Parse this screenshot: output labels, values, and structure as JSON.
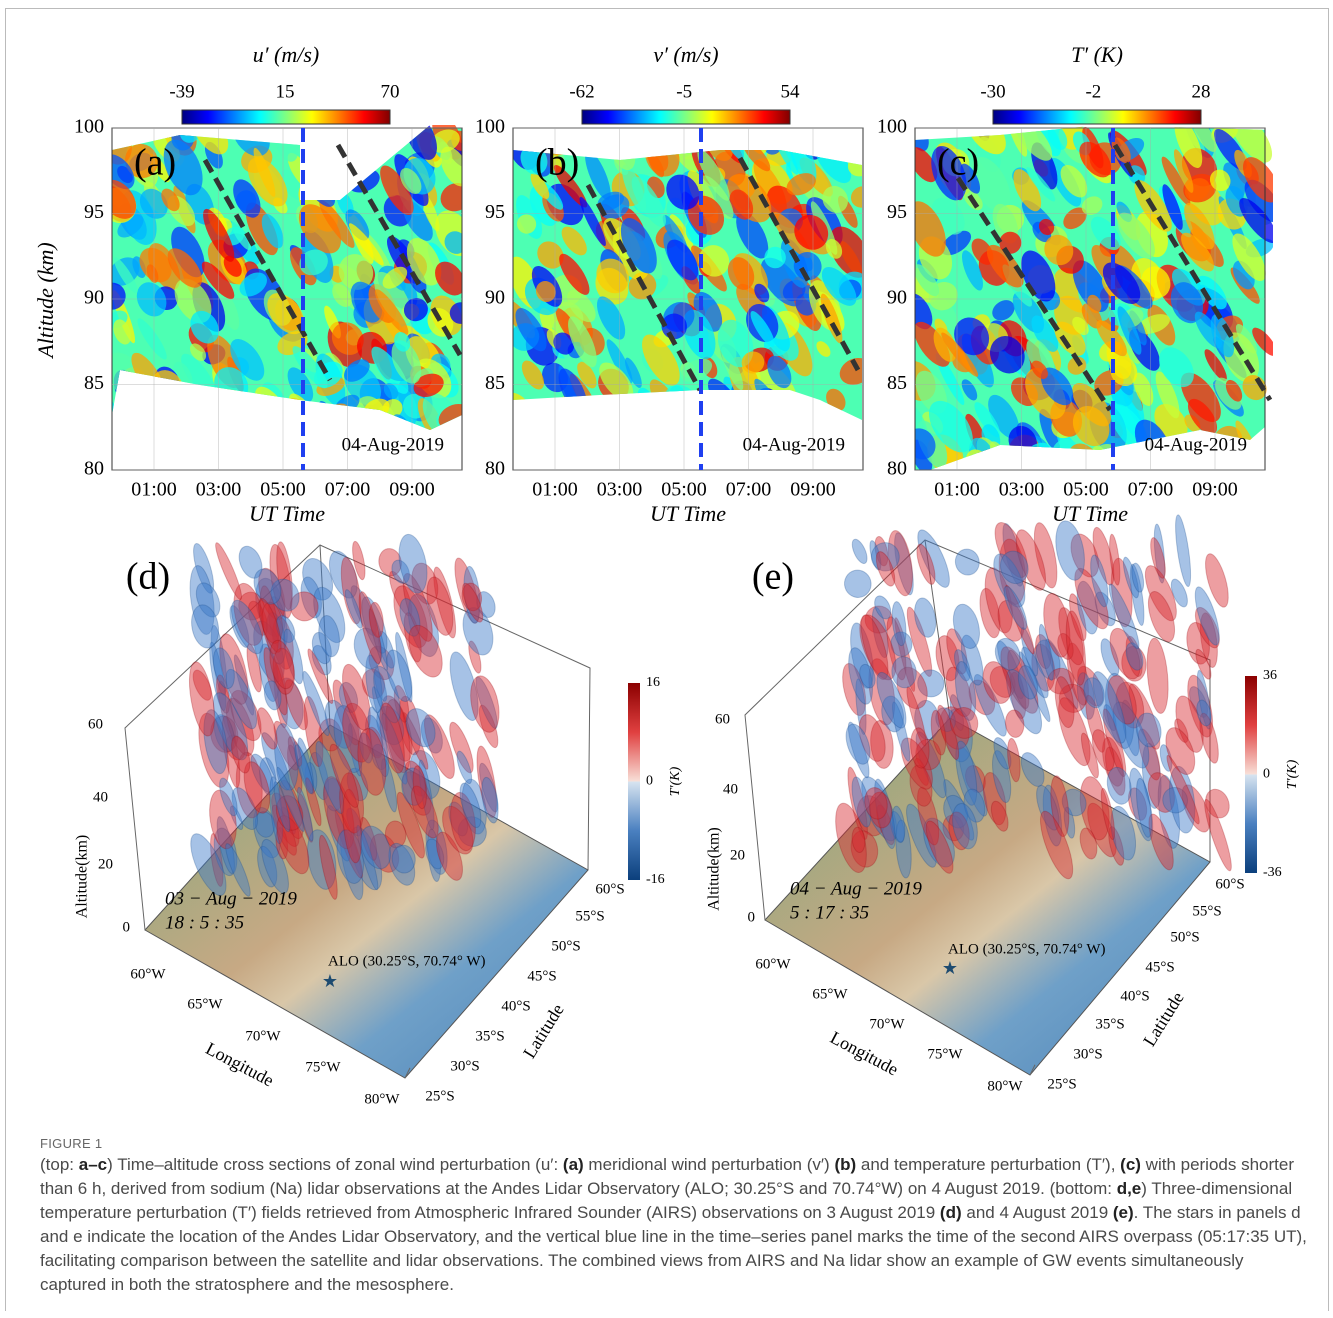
{
  "figure": {
    "top_panels": [
      {
        "letter": "(a)",
        "colorbar_label": "u′ (m/s)",
        "colorbar_ticks": [
          -39,
          15,
          70
        ],
        "date": "04-Aug-2019"
      },
      {
        "letter": "(b)",
        "colorbar_label": "v′ (m/s)",
        "colorbar_ticks": [
          -62,
          -5,
          54
        ],
        "date": "04-Aug-2019"
      },
      {
        "letter": "(c)",
        "colorbar_label": "T′ (K)",
        "colorbar_ticks": [
          -30,
          -2,
          28
        ],
        "date": "04-Aug-2019"
      }
    ],
    "top_axes": {
      "y_label": "Altitude (km)",
      "x_label": "UT Time",
      "yticks": [
        80,
        85,
        90,
        95,
        100
      ],
      "xticks": [
        "01:00",
        "03:00",
        "05:00",
        "07:00",
        "09:00"
      ]
    },
    "bottom_panels": [
      {
        "letter": "(d)",
        "date": "03 − Aug − 2019",
        "time": "18 : 5 : 35",
        "colorbar_ticks": [
          16,
          0,
          -16
        ]
      },
      {
        "letter": "(e)",
        "date": "04 − Aug − 2019",
        "time": "5 : 17 : 35",
        "colorbar_ticks": [
          36,
          0,
          -36
        ]
      }
    ],
    "bottom_axes": {
      "altitude_label": "Altitude(km)",
      "altitude_ticks": [
        0,
        20,
        40,
        60
      ],
      "longitude_label": "Longitude",
      "latitude_label": "Latitude",
      "longitude_ticks": [
        "60°W",
        "65°W",
        "70°W",
        "75°W",
        "80°W"
      ],
      "latitude_ticks": [
        "25°S",
        "30°S",
        "35°S",
        "40°S",
        "45°S",
        "50°S",
        "55°S",
        "60°S"
      ],
      "colorbar_label": "T′(K)",
      "station_label": "ALO (30.25°S, 70.74° W)"
    }
  },
  "caption": {
    "label": "FIGURE 1",
    "segments": [
      {
        "text": "(top: "
      },
      {
        "text": "a–c",
        "bold": true
      },
      {
        "text": ") Time–altitude cross sections of zonal wind perturbation (u′: "
      },
      {
        "text": "(a)",
        "bold": true
      },
      {
        "text": " meridional wind perturbation (v′) "
      },
      {
        "text": "(b)",
        "bold": true
      },
      {
        "text": " and temperature perturbation (T′), "
      },
      {
        "text": "(c)",
        "bold": true
      },
      {
        "text": " with periods shorter than 6 h, derived from sodium (Na) lidar observations at the Andes Lidar Observatory (ALO; 30.25°S and 70.74°W) on 4 August 2019. (bottom: "
      },
      {
        "text": "d,e",
        "bold": true
      },
      {
        "text": ") Three-dimensional temperature perturbation (T′) fields retrieved from Atmospheric Infrared Sounder (AIRS) observations on 3 August 2019 "
      },
      {
        "text": "(d)",
        "bold": true
      },
      {
        "text": " and 4 August 2019 "
      },
      {
        "text": "(e)",
        "bold": true
      },
      {
        "text": ". The stars in panels d and e indicate the location of the Andes Lidar Observatory, and the vertical blue line in the time–series panel marks the time of the second AIRS overpass (05:17:35 UT), facilitating comparison between the satellite and lidar observations. The combined views from AIRS and Na lidar show an example of GW events simultaneously captured in both the stratosphere and the mesosphere."
      }
    ]
  }
}
